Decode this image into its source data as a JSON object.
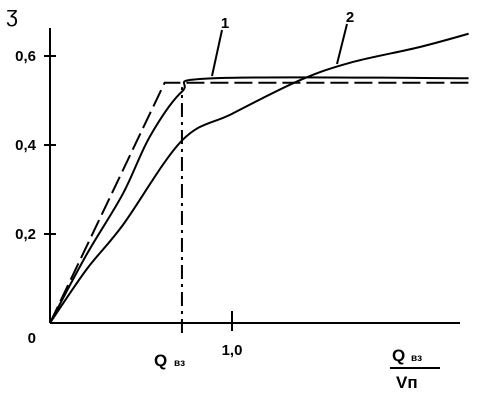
{
  "chart_data": {
    "type": "line",
    "ylabel": "ʒ",
    "xlabel": {
      "numerator": {
        "main": "Q",
        "sub": "вз"
      },
      "denominator": "Vп"
    },
    "marker": {
      "x": 0.725,
      "top": 0.53,
      "label": {
        "main": "Q",
        "sub": "вз"
      }
    },
    "xlim": [
      0,
      2.25
    ],
    "ylim": [
      0,
      0.68
    ],
    "xticks": [
      {
        "value": 1,
        "label": "1,0"
      }
    ],
    "yticks": [
      0,
      {
        "value": 0.2,
        "label": "0,2"
      },
      {
        "value": 0.4,
        "label": "0,4"
      },
      {
        "value": 0.6,
        "label": "0,6"
      }
    ],
    "series": [
      {
        "name": "1",
        "color": "#000000",
        "x": [
          0,
          0.2,
          0.4,
          0.55,
          0.725,
          0.9,
          2.3
        ],
        "values": [
          0,
          0.153,
          0.29,
          0.42,
          0.52,
          0.55,
          0.55
        ]
      },
      {
        "name": "2",
        "color": "#000000",
        "x": [
          0,
          0.2,
          0.4,
          0.725,
          1.0,
          1.37,
          1.65,
          2.03,
          2.3
        ],
        "values": [
          0,
          0.12,
          0.22,
          0.41,
          0.47,
          0.545,
          0.585,
          0.62,
          0.65
        ]
      },
      {
        "color": "#000000",
        "dashed": true,
        "x": [
          0,
          0.63,
          2.3
        ],
        "values": [
          0,
          0.54,
          0.54
        ]
      }
    ]
  }
}
